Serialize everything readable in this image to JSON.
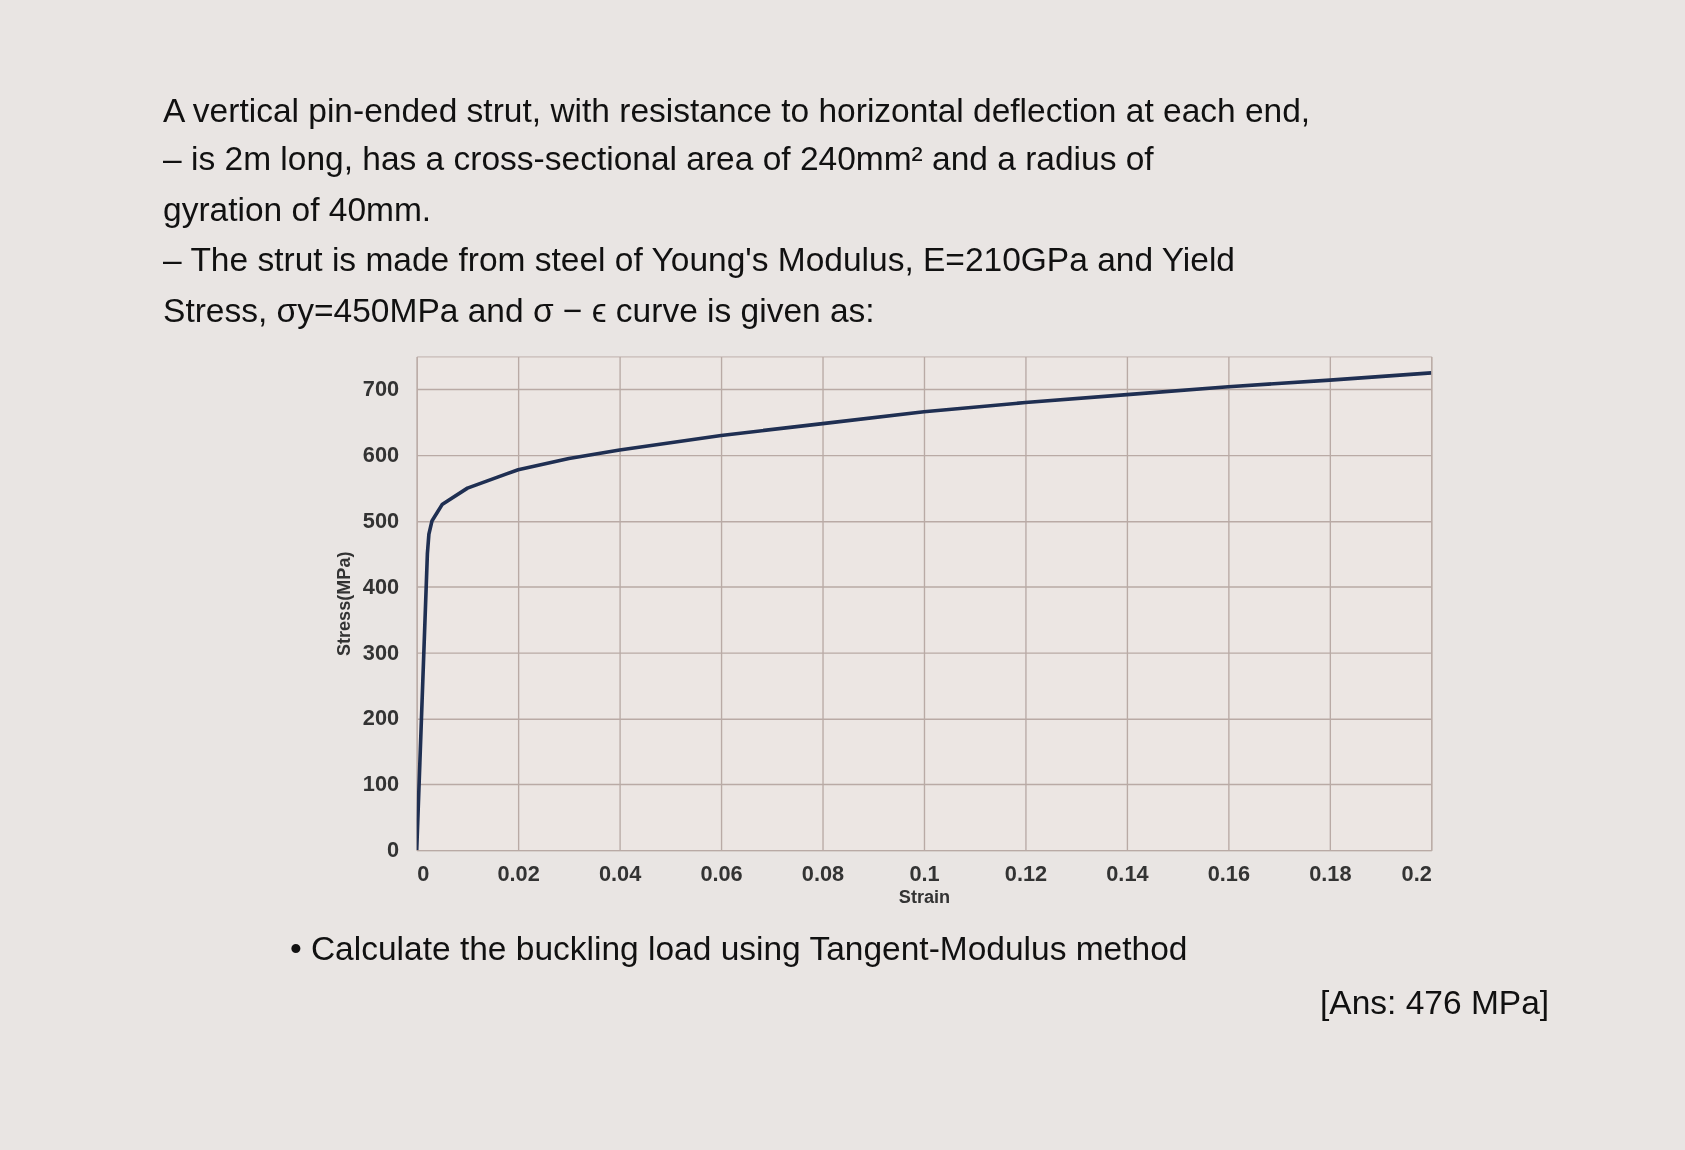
{
  "chart_data": {
    "type": "line",
    "title": "A vertical pin-ended strut, with resistance to horizontal deflection at each end,",
    "subtitle": [
      "– is 2m long, has a cross-sectional area of 240mm² and a radius of",
      "gyration of 40mm.",
      "– The strut is made from steel of Young's Modulus, E=210GPa and Yield",
      "Stress, σy=450MPa and σ − ϵ curve is given as:"
    ],
    "xlabel": "Strain",
    "ylabel": "Stress(MPa)",
    "annotations": [
      "•   Calculate the buckling load using Tangent-Modulus method",
      "[Ans: 476 MPa]"
    ],
    "x": [
      0,
      0.0021,
      0.0024,
      0.003,
      0.005,
      0.01,
      0.02,
      0.03,
      0.04,
      0.06,
      0.08,
      0.1,
      0.12,
      0.14,
      0.16,
      0.18,
      0.2
    ],
    "series": [
      {
        "color": "#1f2f52",
        "values": [
          0,
          450,
          480,
          500,
          525,
          550,
          578,
          595,
          608,
          630,
          648,
          666,
          680,
          692,
          704,
          714,
          725
        ]
      }
    ],
    "xlim": [
      0,
      0.2
    ],
    "ylim": [
      0,
      750
    ],
    "xticks": [
      0,
      0.02,
      0.04,
      0.06,
      0.08,
      0.1,
      0.12,
      0.14,
      0.16,
      0.18,
      0.2
    ],
    "yticks": [
      0,
      100,
      200,
      300,
      400,
      500,
      600,
      700
    ],
    "grid": true,
    "marker": "none",
    "line_style": "solid"
  }
}
